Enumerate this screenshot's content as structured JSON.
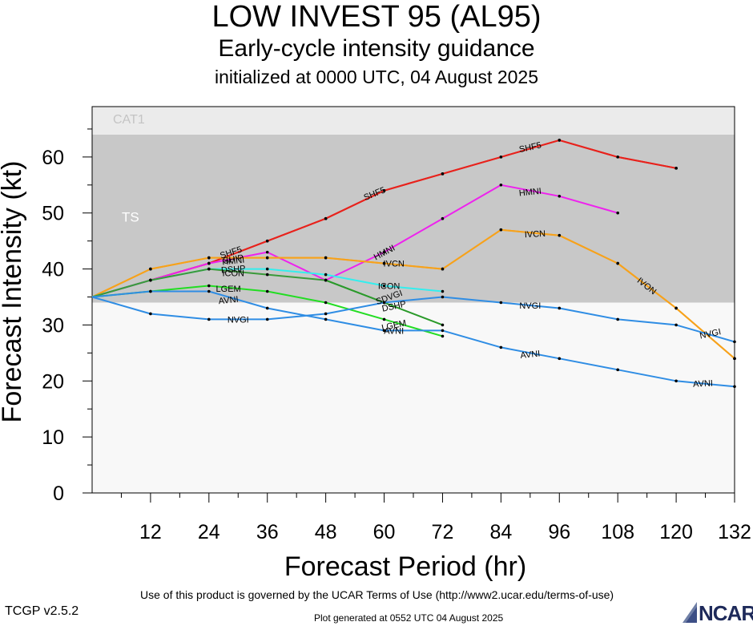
{
  "title": "LOW INVEST 95 (AL95)",
  "subtitle": "Early-cycle intensity guidance",
  "init_line": "initialized at 0000 UTC, 04 August 2025",
  "footer": {
    "terms": "Use of this product is governed by the UCAR Terms of Use (http://www2.ucar.edu/terms-of-use)",
    "version": "TCGP v2.5.2",
    "generated": "Plot generated at 0552 UTC   04 August 2025",
    "logo": "NCAR"
  },
  "chart_data": {
    "type": "line",
    "xlabel": "Forecast Period (hr)",
    "ylabel": "Forecast Intensity (kt)",
    "xlim": [
      0,
      132
    ],
    "ylim": [
      0,
      69
    ],
    "xticks": [
      12,
      24,
      36,
      48,
      60,
      72,
      84,
      96,
      108,
      120,
      132
    ],
    "yticks": [
      0,
      10,
      20,
      30,
      40,
      50,
      60
    ],
    "bands": [
      {
        "label": "TS",
        "from": 34,
        "to": 64,
        "color": "#c8c8c8"
      },
      {
        "label": "CAT1",
        "from": 64,
        "to": 69,
        "color": "#ebebeb"
      }
    ],
    "below_color": "#f8f8f8",
    "series": [
      {
        "name": "SHF5",
        "color": "#e8221c",
        "x": [
          0,
          12,
          24,
          36,
          48,
          60,
          72,
          84,
          96,
          108,
          120
        ],
        "y": [
          35,
          38,
          41,
          45,
          49,
          54,
          57,
          60,
          63,
          60,
          58
        ]
      },
      {
        "name": "SHIP",
        "color": "#e8221c",
        "x": [
          0,
          12,
          24,
          36,
          48,
          60,
          72,
          84,
          96,
          108,
          120
        ],
        "y": [
          35,
          38,
          41,
          45,
          49,
          54,
          57,
          60,
          63,
          60,
          58
        ]
      },
      {
        "name": "HMNI",
        "color": "#ee22ee",
        "x": [
          0,
          12,
          24,
          36,
          48,
          60,
          72,
          84,
          96,
          108
        ],
        "y": [
          35,
          38,
          41,
          43,
          38,
          43,
          49,
          55,
          53,
          50
        ]
      },
      {
        "name": "IVCN",
        "color": "#f7a21b",
        "x": [
          0,
          12,
          24,
          36,
          48,
          60,
          72,
          84,
          96,
          108,
          120,
          132
        ],
        "y": [
          35,
          40,
          42,
          42,
          42,
          41,
          40,
          47,
          46,
          41,
          33,
          24
        ]
      },
      {
        "name": "IVON",
        "color": "#f7a21b",
        "x": [
          0,
          12,
          24,
          36,
          48,
          60,
          72,
          84,
          96,
          108,
          120,
          132
        ],
        "y": [
          35,
          40,
          42,
          42,
          42,
          41,
          40,
          47,
          46,
          41,
          33,
          24
        ]
      },
      {
        "name": "ICON",
        "color": "#33eeee",
        "x": [
          0,
          12,
          24,
          36,
          48,
          60,
          72
        ],
        "y": [
          35,
          38,
          40,
          40,
          39,
          37,
          36
        ]
      },
      {
        "name": "DSHP",
        "color": "#3a9a3a",
        "x": [
          0,
          12,
          24,
          36,
          48,
          60
        ],
        "y": [
          35,
          38,
          40,
          39,
          38,
          34
        ]
      },
      {
        "name": "LGEM",
        "color": "#22dd22",
        "x": [
          0,
          12,
          24,
          36,
          48,
          60,
          72
        ],
        "y": [
          35,
          36,
          37,
          36,
          34,
          31,
          28
        ]
      },
      {
        "name": "SDVGI",
        "color": "#2a9a2a",
        "x": [
          48,
          60,
          72
        ],
        "y": [
          38,
          34,
          30
        ]
      },
      {
        "name": "NVGI",
        "color": "#2f8de4",
        "x": [
          0,
          12,
          24,
          36,
          48,
          60,
          72,
          84,
          96,
          108,
          120,
          132
        ],
        "y": [
          35,
          32,
          31,
          31,
          32,
          34,
          35,
          34,
          33,
          31,
          30,
          27
        ]
      },
      {
        "name": "AVNI",
        "color": "#2f8de4",
        "x": [
          0,
          12,
          24,
          36,
          48,
          60,
          72,
          84,
          96,
          108,
          120,
          132
        ],
        "y": [
          35,
          36,
          36,
          33,
          31,
          29,
          29,
          26,
          24,
          22,
          20,
          19
        ]
      }
    ],
    "labels": [
      {
        "text": "SHF5",
        "x": 28.5,
        "y": 43,
        "angle": -18
      },
      {
        "text": "SHIP",
        "x": 29,
        "y": 41.8,
        "angle": -10
      },
      {
        "text": "HMNI",
        "x": 29,
        "y": 41.5,
        "angle": -6
      },
      {
        "text": "DSHP",
        "x": 29,
        "y": 40,
        "angle": -4
      },
      {
        "text": "ICON",
        "x": 29,
        "y": 39.3,
        "angle": 0
      },
      {
        "text": "SHF5",
        "x": 58,
        "y": 53.5,
        "angle": -22
      },
      {
        "text": "SHF5",
        "x": 90,
        "y": 61.8,
        "angle": -12
      },
      {
        "text": "HMNI",
        "x": 60,
        "y": 43,
        "angle": -28
      },
      {
        "text": "HMNI",
        "x": 90,
        "y": 53.8,
        "angle": -6
      },
      {
        "text": "IVCN",
        "x": 62,
        "y": 41,
        "angle": 0
      },
      {
        "text": "IVCN",
        "x": 91,
        "y": 46.3,
        "angle": -3
      },
      {
        "text": "IVON",
        "x": 114,
        "y": 37,
        "angle": 38
      },
      {
        "text": "ICON",
        "x": 61,
        "y": 37,
        "angle": 0
      },
      {
        "text": "LGEM",
        "x": 28,
        "y": 36.5,
        "angle": 0
      },
      {
        "text": "AVNI",
        "x": 28,
        "y": 34.5,
        "angle": -6
      },
      {
        "text": "NVGI",
        "x": 30,
        "y": 31,
        "angle": 0
      },
      {
        "text": "SDVGI",
        "x": 61,
        "y": 35,
        "angle": -20
      },
      {
        "text": "DSHP",
        "x": 62,
        "y": 33.4,
        "angle": -12
      },
      {
        "text": "LGEM",
        "x": 62,
        "y": 30,
        "angle": -12
      },
      {
        "text": "AVNI",
        "x": 62,
        "y": 29,
        "angle": 0
      },
      {
        "text": "NVGI",
        "x": 90,
        "y": 33.5,
        "angle": 0
      },
      {
        "text": "NVGI",
        "x": 127,
        "y": 28.5,
        "angle": -12
      },
      {
        "text": "AVNI",
        "x": 90,
        "y": 24.8,
        "angle": -6
      },
      {
        "text": "AVNI",
        "x": 125.5,
        "y": 19.6,
        "angle": -3
      }
    ]
  }
}
